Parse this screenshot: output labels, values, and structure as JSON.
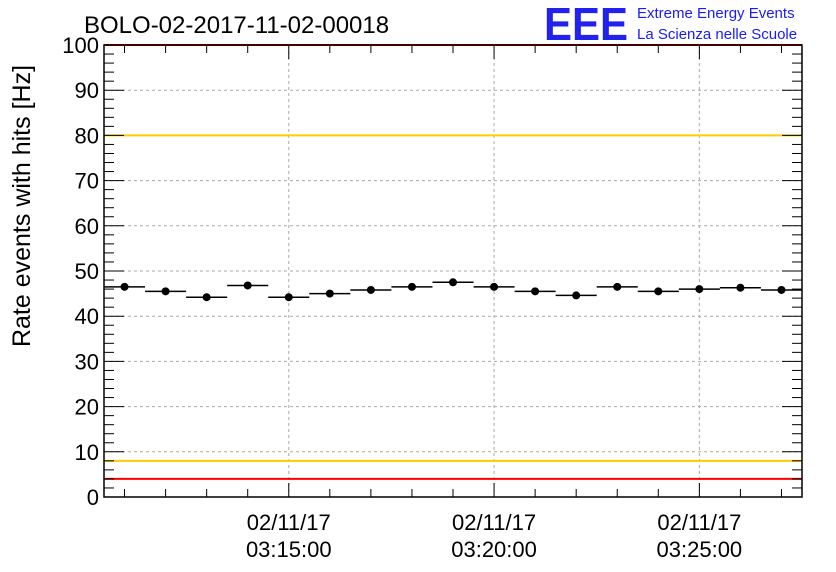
{
  "chart_data": {
    "type": "scatter",
    "title": "BOLO-02-2017-11-02-00018",
    "xlabel": "",
    "ylabel": "Rate events with hits [Hz]",
    "ylim": [
      0,
      100
    ],
    "yticks": [
      0,
      10,
      20,
      30,
      40,
      50,
      60,
      70,
      80,
      90,
      100
    ],
    "x_range_minutes": [
      0,
      17
    ],
    "xticks": [
      {
        "minute": 4.5,
        "date": "02/11/17",
        "time": "03:15:00"
      },
      {
        "minute": 9.5,
        "date": "02/11/17",
        "time": "03:20:00"
      },
      {
        "minute": 14.5,
        "date": "02/11/17",
        "time": "03:25:00"
      }
    ],
    "grid": true,
    "series": [
      {
        "name": "rate",
        "bin_width_minutes": 1,
        "x": [
          0.5,
          1.5,
          2.5,
          3.5,
          4.5,
          5.5,
          6.5,
          7.5,
          8.5,
          9.5,
          10.5,
          11.5,
          12.5,
          13.5,
          14.5,
          15.5,
          16.5
        ],
        "values": [
          46.5,
          45.5,
          44.2,
          46.8,
          44.2,
          45.0,
          45.8,
          46.5,
          47.5,
          46.5,
          45.5,
          44.6,
          46.5,
          45.5,
          46.0,
          46.3,
          45.8
        ]
      }
    ],
    "reference_lines": [
      {
        "value": 100,
        "color": "#ff0000"
      },
      {
        "value": 80,
        "color": "#ffcc00"
      },
      {
        "value": 8,
        "color": "#ffcc00"
      },
      {
        "value": 4,
        "color": "#ff0000"
      }
    ]
  },
  "logo": {
    "letters": "EEE",
    "line1": "Extreme Energy Events",
    "line2": "La Scienza nelle Scuole"
  },
  "colors": {
    "points": "#000000",
    "grid": "#aaaaaa",
    "logo": "#2222ee"
  }
}
